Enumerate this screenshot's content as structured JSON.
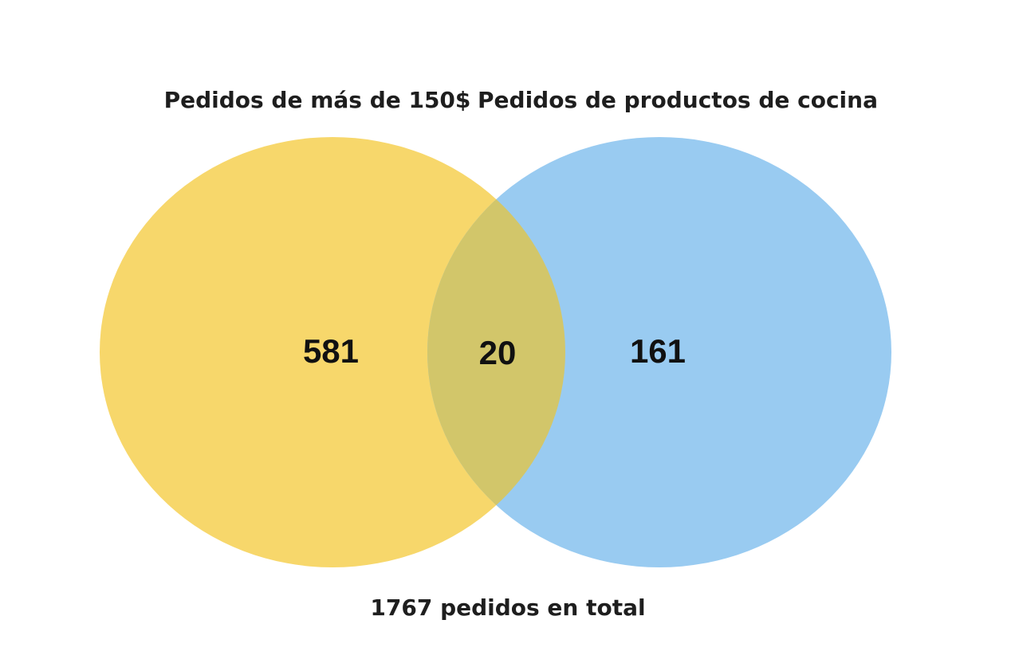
{
  "diagram": {
    "type": "venn",
    "sets": [
      {
        "label": "Pedidos de más de 150$",
        "color": "#F7D76B"
      },
      {
        "label": "Pedidos de productos de cocina",
        "color": "#99CBF1"
      }
    ],
    "overlap_color": "#D2C66A",
    "regions": {
      "only_a": "581",
      "intersection": "20",
      "only_b": "161"
    },
    "total_label": "1767 pedidos en total"
  }
}
